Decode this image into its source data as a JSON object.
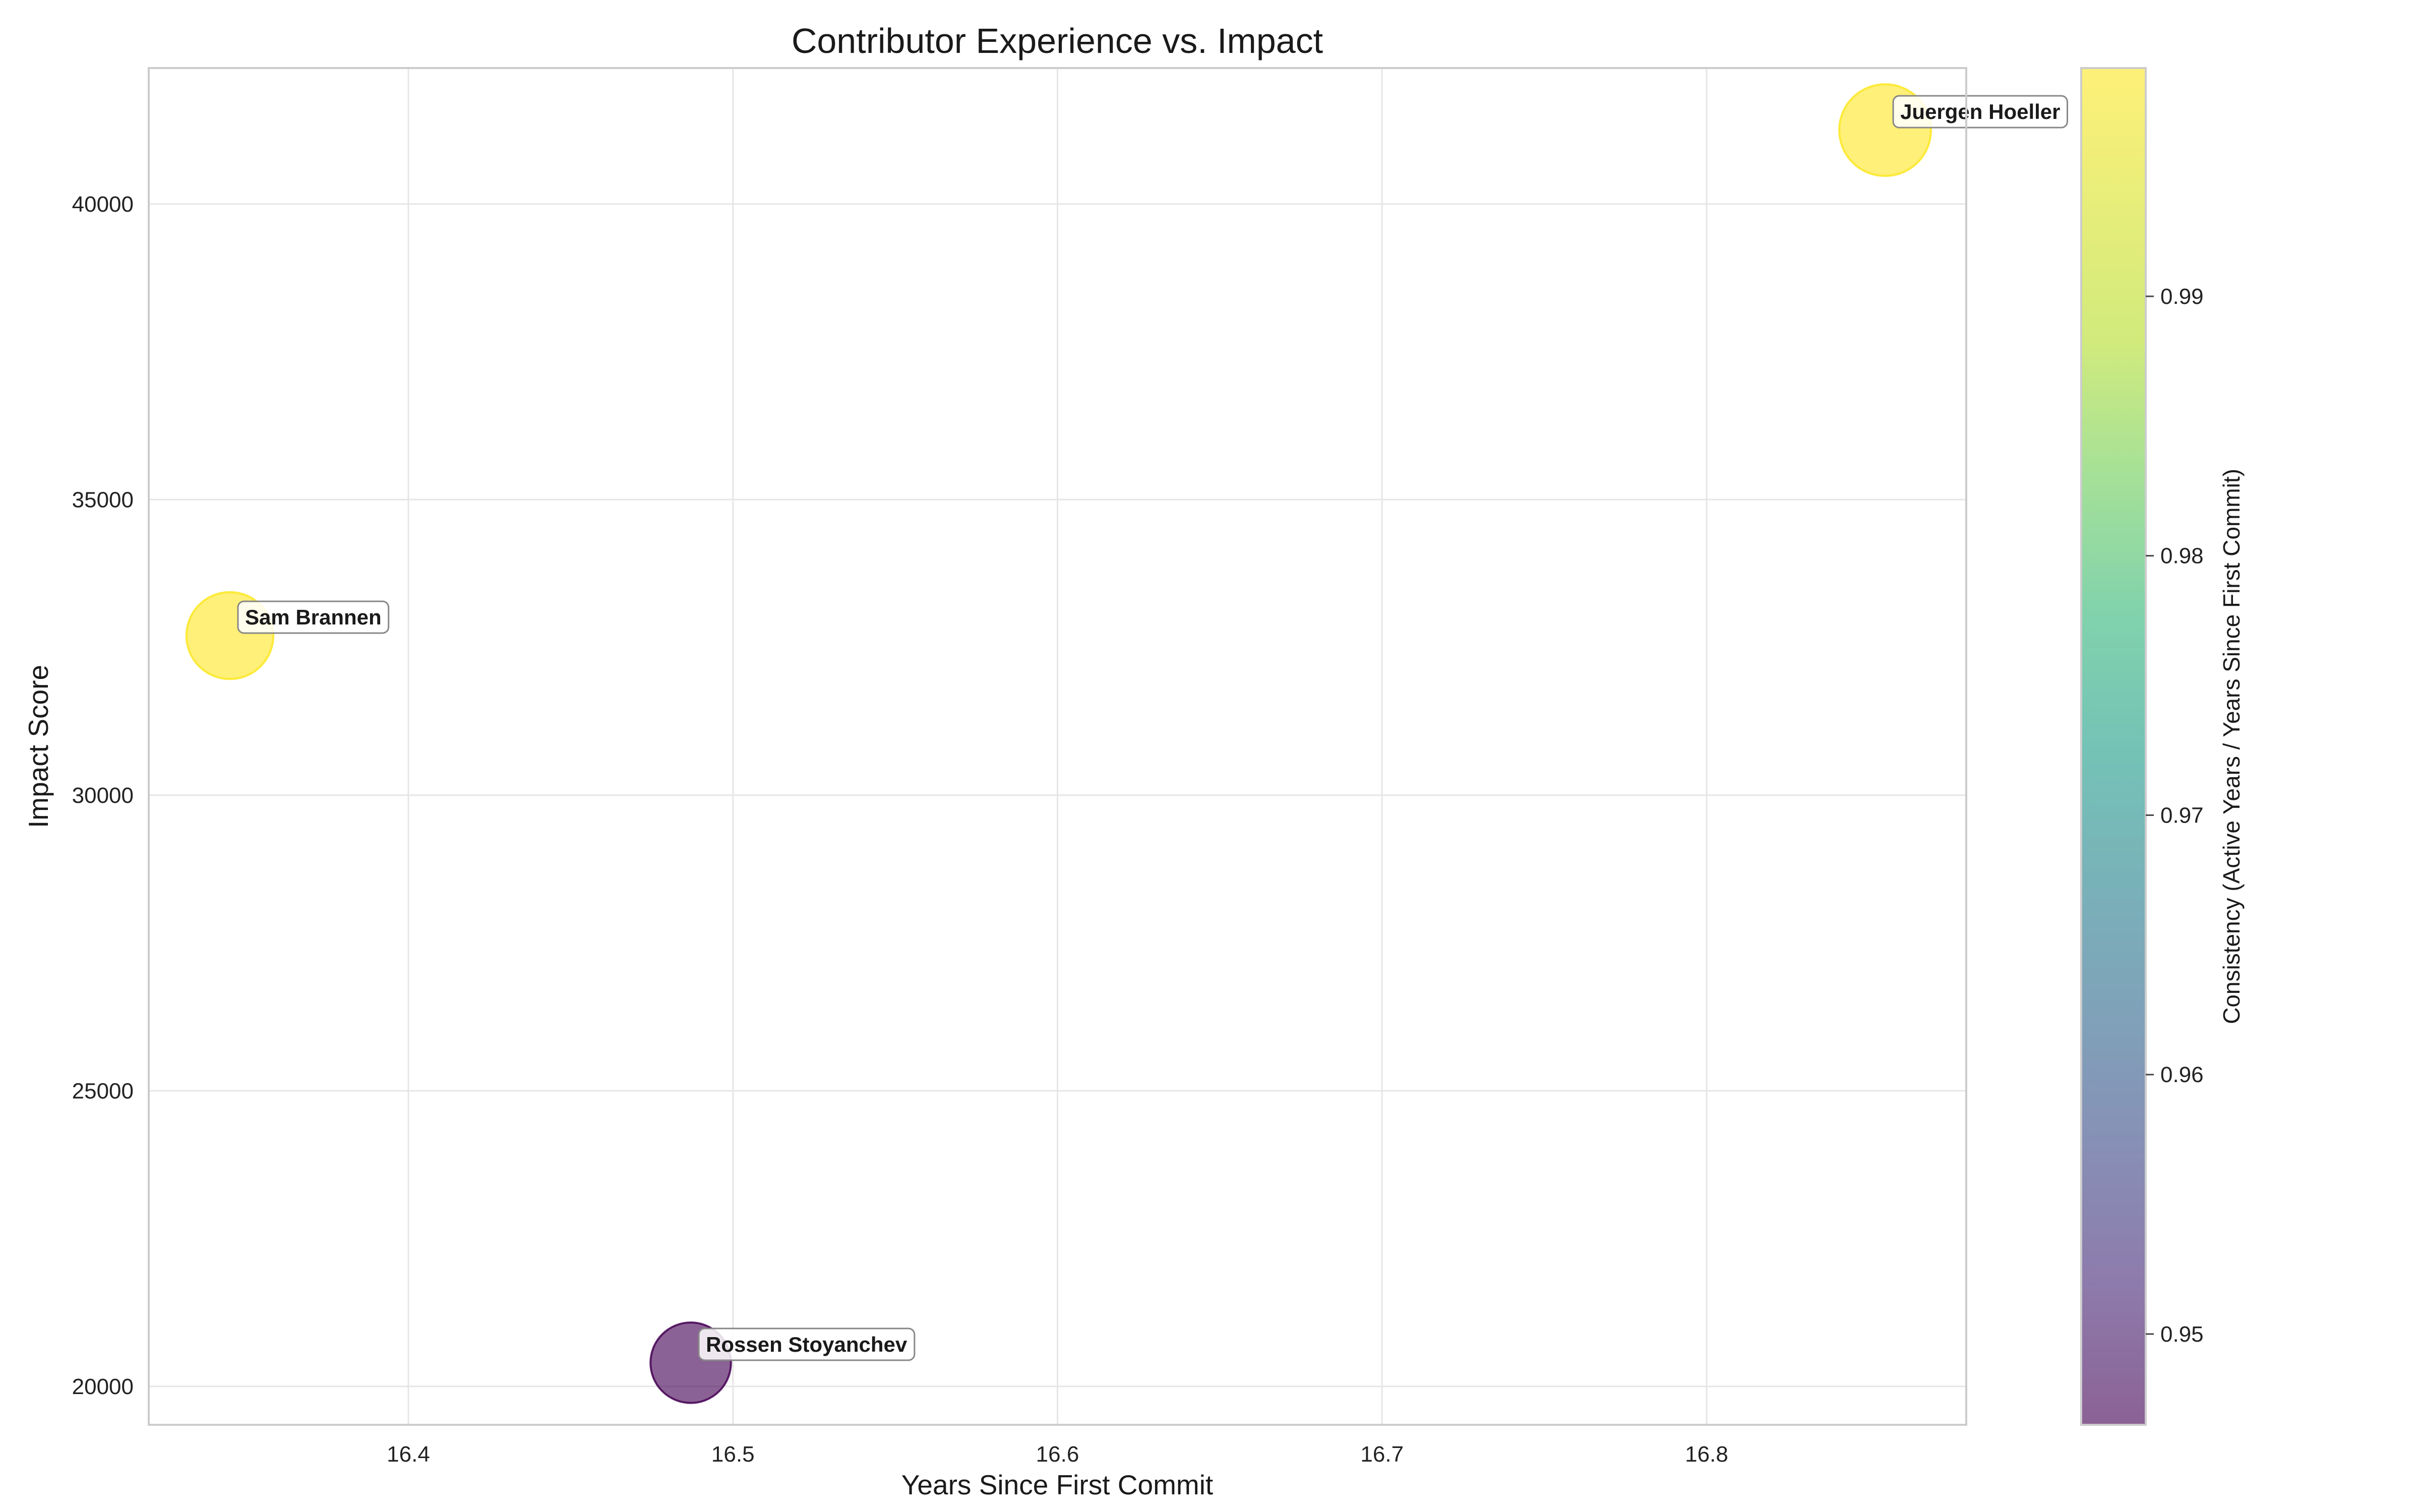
{
  "chart_data": {
    "type": "scatter",
    "title": "Contributor Experience vs. Impact",
    "xlabel": "Years Since First Commit",
    "ylabel": "Impact Score",
    "xlim": [
      16.32,
      16.88
    ],
    "ylim": [
      19350,
      42300
    ],
    "xticks": [
      "16.4",
      "16.5",
      "16.6",
      "16.7",
      "16.8"
    ],
    "yticks": [
      "20000",
      "25000",
      "30000",
      "35000",
      "40000"
    ],
    "grid": true,
    "colorbar": {
      "label": "Consistency (Active Years / Years Since First Commit)",
      "range": [
        0.9465,
        0.9988
      ],
      "ticks": [
        "0.95",
        "0.96",
        "0.97",
        "0.98",
        "0.99"
      ],
      "colormap": "viridis"
    },
    "points": [
      {
        "name": "Sam Brannen",
        "x": 16.345,
        "y": 32700,
        "color_value": 0.9988,
        "size": 0.78,
        "color": "#fde725"
      },
      {
        "name": "Rossen Stoyanchev",
        "x": 16.487,
        "y": 20400,
        "color_value": 0.9465,
        "size": 0.62,
        "color": "#440154"
      },
      {
        "name": "Juergen Hoeller",
        "x": 16.855,
        "y": 41250,
        "color_value": 0.9988,
        "size": 0.9,
        "color": "#fde725"
      }
    ]
  }
}
